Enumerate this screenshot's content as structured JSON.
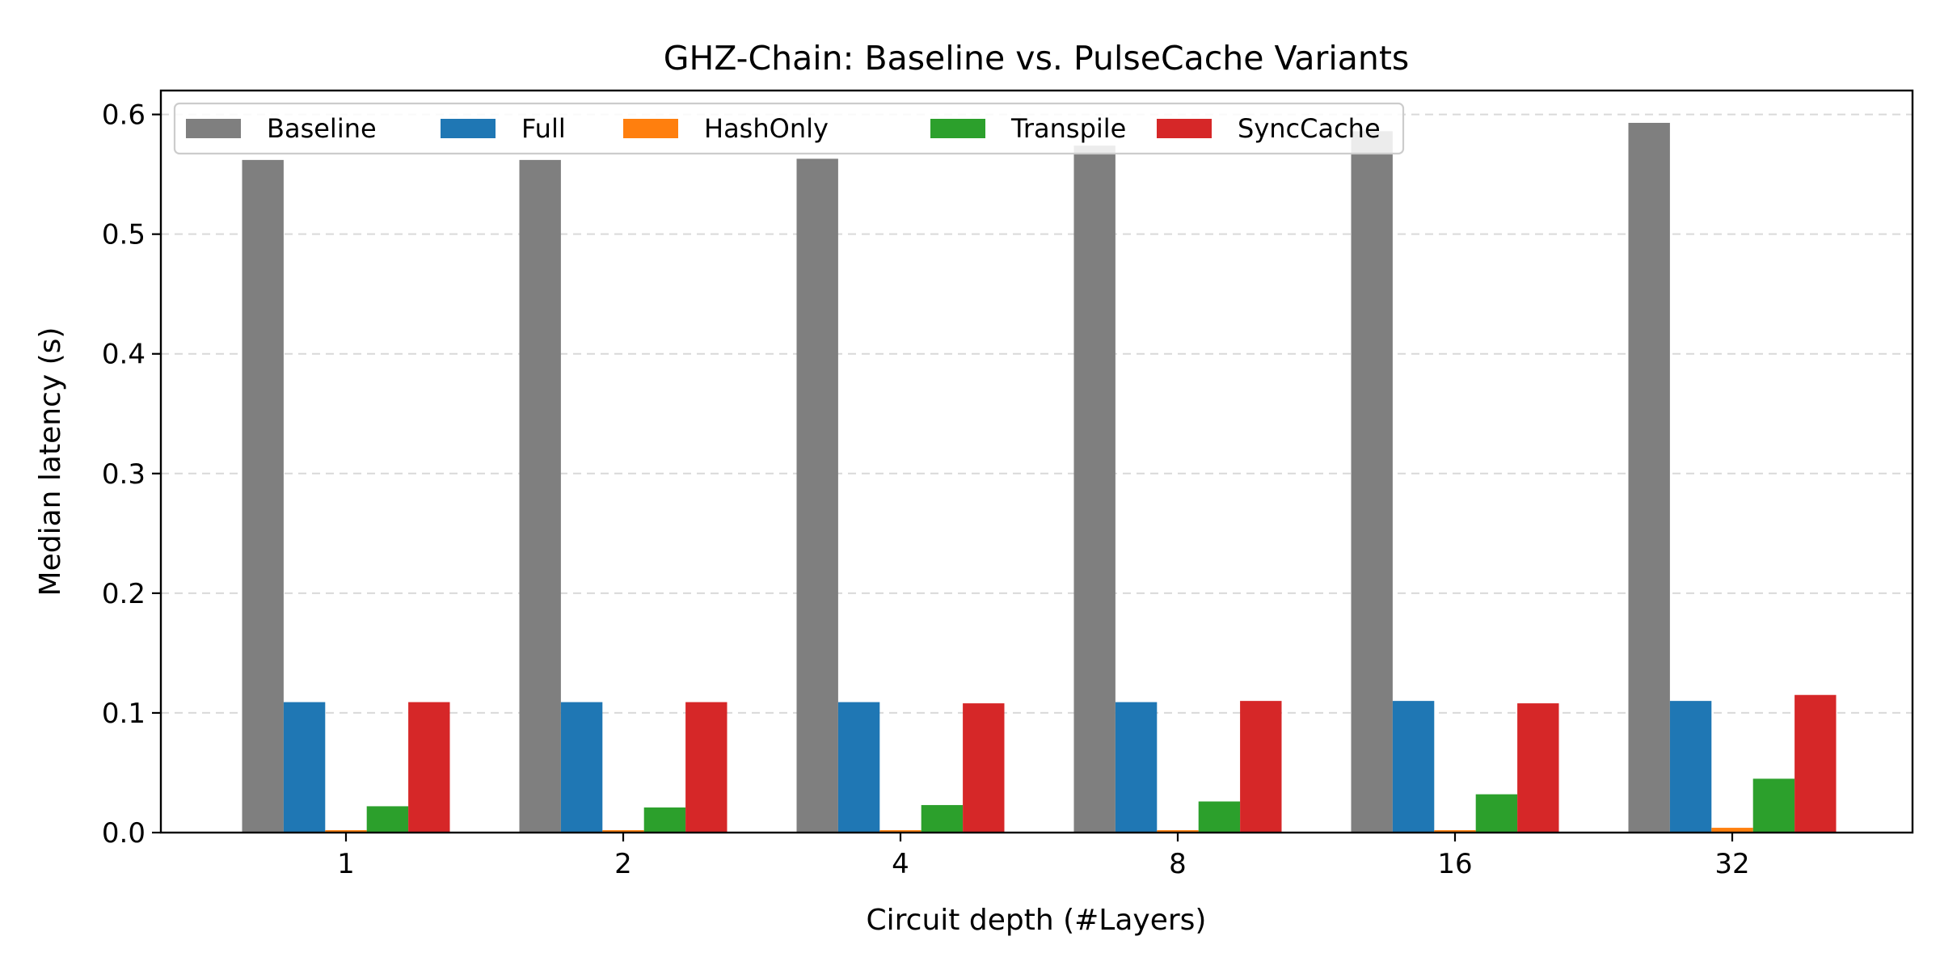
{
  "chart_data": {
    "type": "bar",
    "title": "GHZ-Chain: Baseline vs. PulseCache Variants",
    "xlabel": "Circuit depth (#Layers)",
    "ylabel": "Median latency (s)",
    "categories": [
      "1",
      "2",
      "4",
      "8",
      "16",
      "32"
    ],
    "ylim": [
      0,
      0.62
    ],
    "yticks": [
      0.0,
      0.1,
      0.2,
      0.3,
      0.4,
      0.5,
      0.6
    ],
    "ytick_labels": [
      "0.0",
      "0.1",
      "0.2",
      "0.3",
      "0.4",
      "0.5",
      "0.6"
    ],
    "grid": "y-dashed",
    "legend": "top-left",
    "series": [
      {
        "name": "Baseline",
        "color": "#7f7f7f",
        "values": [
          0.562,
          0.562,
          0.563,
          0.574,
          0.586,
          0.593
        ]
      },
      {
        "name": "Full",
        "color": "#1f77b4",
        "values": [
          0.109,
          0.109,
          0.109,
          0.109,
          0.11,
          0.11
        ]
      },
      {
        "name": "HashOnly",
        "color": "#ff7f0e",
        "values": [
          0.002,
          0.002,
          0.002,
          0.002,
          0.002,
          0.004
        ]
      },
      {
        "name": "Transpile",
        "color": "#2ca02c",
        "values": [
          0.022,
          0.021,
          0.023,
          0.026,
          0.032,
          0.045
        ]
      },
      {
        "name": "SyncCache",
        "color": "#d62728",
        "values": [
          0.109,
          0.109,
          0.108,
          0.11,
          0.108,
          0.115
        ]
      }
    ]
  }
}
